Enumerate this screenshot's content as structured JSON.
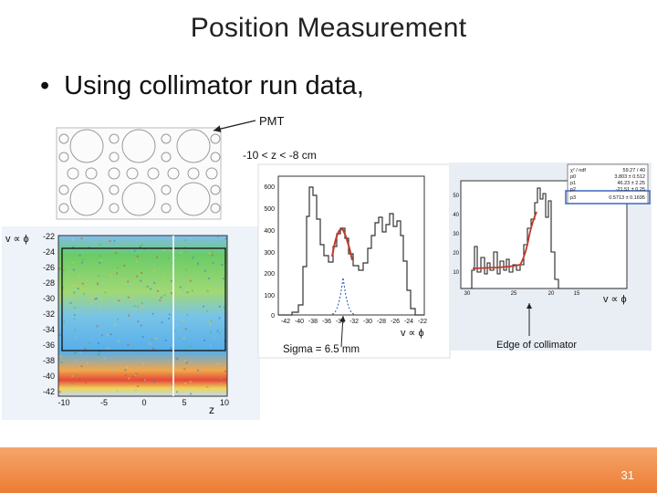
{
  "slide": {
    "title": "Position Measurement",
    "bullet": "Using collimator run data,",
    "page_number": "31"
  },
  "pmt_diagram": {
    "label": "PMT"
  },
  "scatter": {
    "ylabel": "v ∝ ϕ",
    "xlabel": "z",
    "y_ticks": [
      "-22",
      "-24",
      "-26",
      "-28",
      "-30",
      "-32",
      "-34",
      "-36",
      "-38",
      "-40",
      "-42"
    ],
    "x_ticks": [
      "-10",
      "-5",
      "0",
      "5",
      "10"
    ]
  },
  "hist_left": {
    "cut_label": "-10 < z < -8 cm",
    "y_ticks": [
      "600",
      "500",
      "400",
      "300",
      "200",
      "100",
      "0"
    ],
    "x_ticks": [
      "-42",
      "-40",
      "-38",
      "-36",
      "-34",
      "-32",
      "-30",
      "-28",
      "-26",
      "-24",
      "-22"
    ],
    "axis_label": "v ∝ ϕ",
    "sigma_label": "Sigma = 6.5 mm"
  },
  "hist_right": {
    "y_ticks": [
      "50",
      "40",
      "30",
      "20",
      "10"
    ],
    "x_ticks": [
      "30",
      "25",
      "20",
      "15"
    ],
    "axis_label": "v ∝ ϕ",
    "annotation": "Edge of collimator",
    "stats": [
      {
        "name": "χ² / ndf",
        "value": "59.27 / 40"
      },
      {
        "name": "p0",
        "value": "3.803 ± 0.512"
      },
      {
        "name": "p1",
        "value": "46.23 ± 2.25"
      },
      {
        "name": "p2",
        "value": "-21.51 ± 0.25"
      },
      {
        "name": "p3",
        "value": "0.5713 ± 0.1695"
      }
    ]
  },
  "colors": {
    "accent": "#ec7d33",
    "fit_red": "#c0392b",
    "gauss_blue": "#1f4fbf"
  }
}
